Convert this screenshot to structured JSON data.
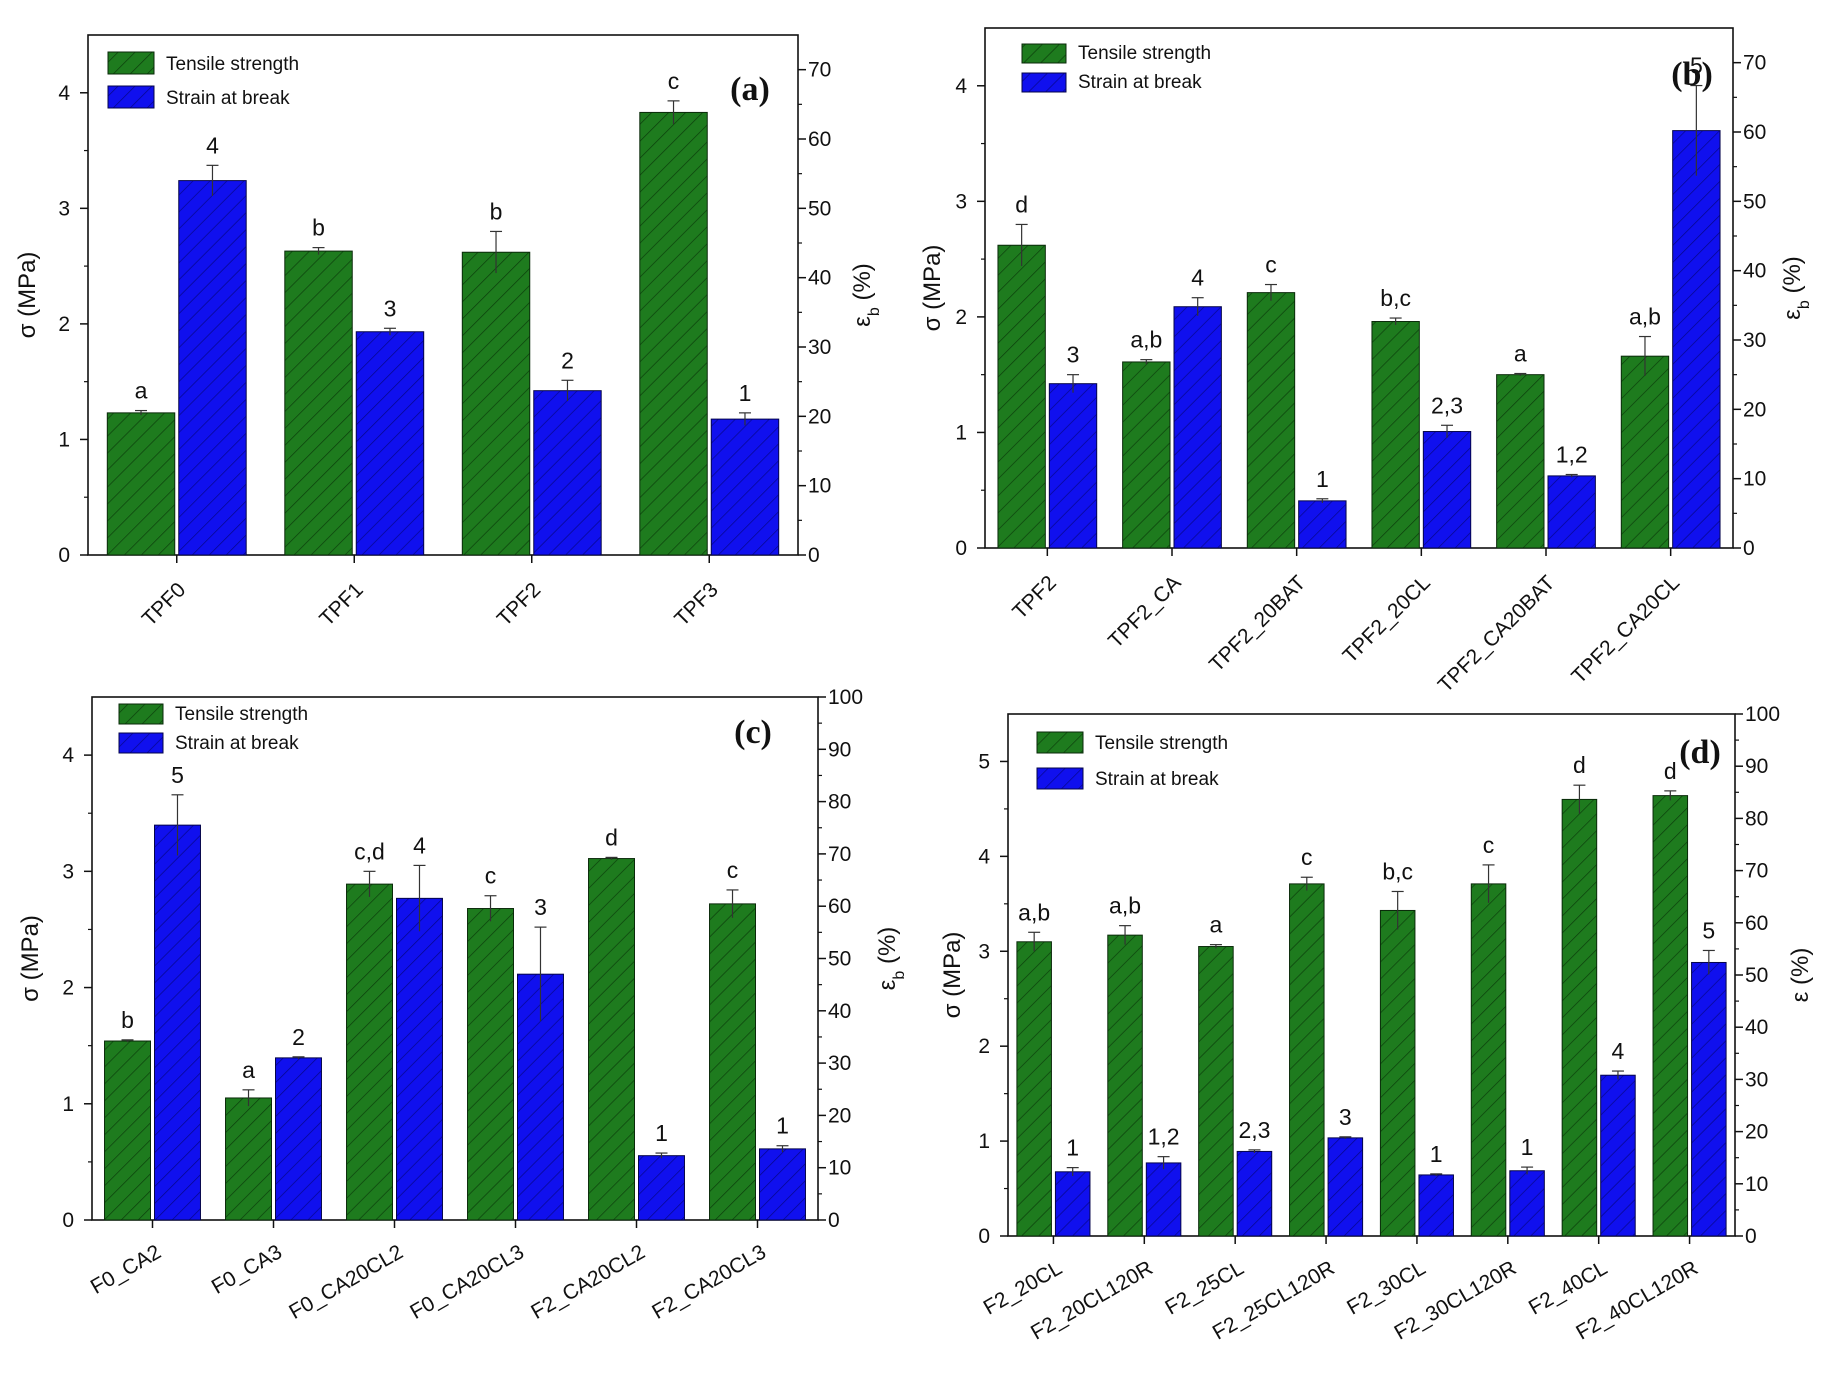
{
  "colors": {
    "green": "#1e7b1e",
    "blue": "#1010ee",
    "axis": "#111111"
  },
  "chart_data": [
    {
      "type": "bar",
      "panel_label": "(a)",
      "categories": [
        "TPF0",
        "TPF1",
        "TPF2",
        "TPF3"
      ],
      "series": [
        {
          "name": "Tensile strength",
          "axis": "left",
          "values": [
            1.23,
            2.63,
            2.62,
            3.83
          ],
          "errors": [
            0.02,
            0.03,
            0.18,
            0.1
          ],
          "labels": [
            "a",
            "b",
            "b",
            "c"
          ]
        },
        {
          "name": "Strain at break",
          "axis": "right",
          "values": [
            54.0,
            32.2,
            23.7,
            19.6
          ],
          "errors": [
            2.2,
            0.5,
            1.5,
            0.9
          ],
          "labels": [
            "4",
            "3",
            "2",
            "1"
          ]
        }
      ],
      "ylabel": "σ (MPa)",
      "y2label_main": "ε",
      "y2label_sub": "b",
      "y2label_unit": " (%)",
      "ylim": [
        0,
        4.5
      ],
      "y2lim": [
        0,
        75
      ],
      "yticks": [
        0,
        1,
        2,
        3,
        4
      ],
      "y2ticks": [
        0,
        10,
        20,
        30,
        40,
        50,
        60,
        70
      ],
      "legend": "top-left"
    },
    {
      "type": "bar",
      "panel_label": "(b)",
      "categories": [
        "TPF2",
        "TPF2_CA",
        "TPF2_20BAT",
        "TPF2_20CL",
        "TPF2_CA20BAT",
        "TPF2_CA20CL"
      ],
      "series": [
        {
          "name": "Tensile strength",
          "axis": "left",
          "values": [
            2.62,
            1.61,
            2.21,
            1.96,
            1.5,
            1.66
          ],
          "errors": [
            0.18,
            0.02,
            0.07,
            0.03,
            0.01,
            0.17
          ],
          "labels": [
            "d",
            "a,b",
            "c",
            "b,c",
            "a",
            "a,b"
          ]
        },
        {
          "name": "Strain at break",
          "axis": "right",
          "values": [
            23.7,
            34.8,
            6.8,
            16.8,
            10.4,
            60.2
          ],
          "errors": [
            1.3,
            1.3,
            0.3,
            0.9,
            0.2,
            6.5
          ],
          "labels": [
            "3",
            "4",
            "1",
            "2,3",
            "1,2",
            "5"
          ]
        }
      ],
      "ylabel": "σ (MPa)",
      "y2label_main": "ε",
      "y2label_sub": "b",
      "y2label_unit": " (%)",
      "ylim": [
        0,
        4.5
      ],
      "y2lim": [
        0,
        75
      ],
      "yticks": [
        0,
        1,
        2,
        3,
        4
      ],
      "y2ticks": [
        0,
        10,
        20,
        30,
        40,
        50,
        60,
        70
      ],
      "legend": "top-left"
    },
    {
      "type": "bar",
      "panel_label": "(c)",
      "categories": [
        "F0_CA2",
        "F0_CA3",
        "F0_CA20CL2",
        "F0_CA20CL3",
        "F2_CA20CL2",
        "F2_CA20CL3"
      ],
      "series": [
        {
          "name": "Tensile strength",
          "axis": "left",
          "values": [
            1.54,
            1.05,
            2.89,
            2.68,
            3.11,
            2.72
          ],
          "errors": [
            0.01,
            0.07,
            0.11,
            0.11,
            0.01,
            0.12
          ],
          "labels": [
            "b",
            "a",
            "c,d",
            "c",
            "d",
            "c"
          ]
        },
        {
          "name": "Strain at break",
          "axis": "right",
          "values": [
            75.5,
            31.0,
            61.5,
            47.0,
            12.3,
            13.6
          ],
          "errors": [
            5.8,
            0.2,
            6.3,
            9.0,
            0.5,
            0.6
          ],
          "labels": [
            "5",
            "2",
            "4",
            "3",
            "1",
            "1"
          ]
        }
      ],
      "ylabel": "σ (MPa)",
      "y2label_main": "ε",
      "y2label_sub": "b",
      "y2label_unit": " (%)",
      "ylim": [
        0,
        4.5
      ],
      "y2lim": [
        0,
        100
      ],
      "yticks": [
        0,
        1,
        2,
        3,
        4
      ],
      "y2ticks": [
        0,
        10,
        20,
        30,
        40,
        50,
        60,
        70,
        80,
        90,
        100
      ],
      "legend": "top-left"
    },
    {
      "type": "bar",
      "panel_label": "(d)",
      "categories": [
        "F2_20CL",
        "F2_20CL120R",
        "F2_25CL",
        "F2_25CL120R",
        "F2_30CL",
        "F2_30CL120R",
        "F2_40CL",
        "F2_40CL120R"
      ],
      "series": [
        {
          "name": "Tensile strength",
          "axis": "left",
          "values": [
            3.1,
            3.17,
            3.05,
            3.71,
            3.43,
            3.71,
            4.6,
            4.64
          ],
          "errors": [
            0.1,
            0.1,
            0.02,
            0.07,
            0.2,
            0.2,
            0.15,
            0.05
          ],
          "labels": [
            "a,b",
            "a,b",
            "a",
            "c",
            "b,c",
            "c",
            "d",
            "d"
          ]
        },
        {
          "name": "Strain at break",
          "axis": "right",
          "values": [
            12.3,
            14.0,
            16.2,
            18.8,
            11.7,
            12.5,
            30.8,
            52.4
          ],
          "errors": [
            0.8,
            1.2,
            0.3,
            0.2,
            0.2,
            0.7,
            0.8,
            2.3
          ],
          "labels": [
            "1",
            "1,2",
            "2,3",
            "3",
            "1",
            "1",
            "4",
            "5"
          ]
        }
      ],
      "ylabel": "σ (MPa)",
      "y2label_main": "ε",
      "y2label_sub": "",
      "y2label_unit": " (%)",
      "ylim": [
        0,
        5.5
      ],
      "y2lim": [
        0,
        100
      ],
      "yticks": [
        0,
        1,
        2,
        3,
        4,
        5
      ],
      "y2ticks": [
        0,
        10,
        20,
        30,
        40,
        50,
        60,
        70,
        80,
        90,
        100
      ],
      "legend": "top-left"
    }
  ]
}
